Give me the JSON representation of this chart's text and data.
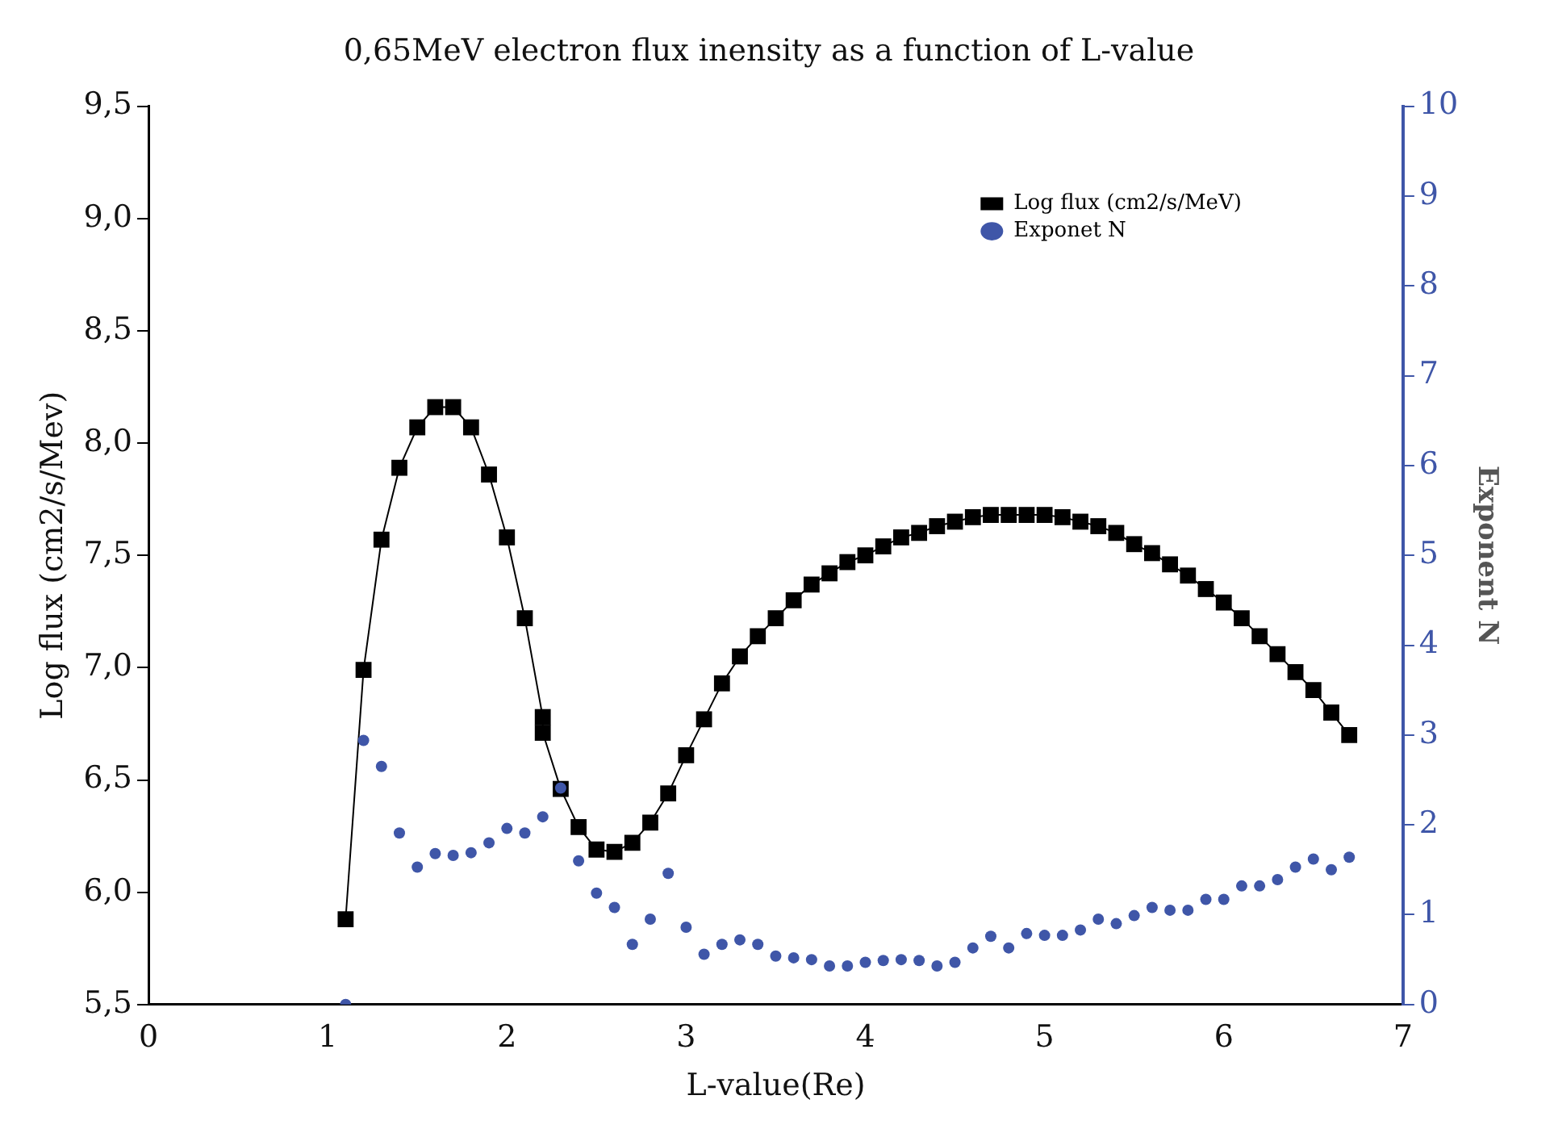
{
  "chart_data": {
    "type": "line",
    "title": "0,65MeV electron flux inensity as a function of L-value",
    "xlabel": "L-value(Re)",
    "ylabel": "Log flux (cm2/s/Mev)",
    "y2label": "Exponent N",
    "xlim": [
      0,
      7
    ],
    "xticks": [
      0,
      1,
      2,
      3,
      4,
      5,
      6,
      7
    ],
    "ylim": [
      5.5,
      9.5
    ],
    "yticks": [
      {
        "value": 5.5,
        "label": "5,5"
      },
      {
        "value": 6,
        "label": "6,0"
      },
      {
        "value": 6.5,
        "label": "6,5"
      },
      {
        "value": 7,
        "label": "7,0"
      },
      {
        "value": 7.5,
        "label": "7,5"
      },
      {
        "value": 8,
        "label": "8,0"
      },
      {
        "value": 8.5,
        "label": "8,5"
      },
      {
        "value": 9,
        "label": "9,0"
      },
      {
        "value": 9.5,
        "label": "9,5"
      }
    ],
    "y2lim": [
      0,
      10
    ],
    "y2ticks": [
      0,
      1,
      2,
      3,
      4,
      5,
      6,
      7,
      8,
      9,
      10
    ],
    "grid": false,
    "legend": "top right",
    "series": [
      {
        "name": "Log flux (cm2/s/MeV)",
        "marker": "square",
        "color": "#000000",
        "x": [
          1.1,
          1.2,
          1.3,
          1.4,
          1.5,
          1.6,
          1.7,
          1.8,
          1.9,
          2.0,
          2.1,
          2.2,
          2.2,
          2.3,
          2.4,
          2.5,
          2.6,
          2.7,
          2.8,
          2.9,
          3.0,
          3.1,
          3.2,
          3.3,
          3.4,
          3.5,
          3.6,
          3.7,
          3.8,
          3.9,
          4.0,
          4.1,
          4.2,
          4.3,
          4.4,
          4.5,
          4.6,
          4.7,
          4.8,
          4.9,
          5.0,
          5.1,
          5.2,
          5.3,
          5.4,
          5.5,
          5.6,
          5.7,
          5.8,
          5.9,
          6.0,
          6.1,
          6.2,
          6.3,
          6.4,
          6.5,
          6.6,
          6.7
        ],
        "values": [
          5.88,
          6.99,
          7.57,
          7.89,
          8.07,
          8.16,
          8.16,
          8.07,
          7.86,
          7.58,
          7.22,
          6.78,
          6.71,
          6.46,
          6.29,
          6.19,
          6.18,
          6.22,
          6.31,
          6.44,
          6.61,
          6.77,
          6.93,
          7.05,
          7.14,
          7.22,
          7.3,
          7.37,
          7.42,
          7.47,
          7.5,
          7.54,
          7.58,
          7.6,
          7.63,
          7.65,
          7.67,
          7.68,
          7.68,
          7.68,
          7.68,
          7.67,
          7.65,
          7.63,
          7.6,
          7.55,
          7.51,
          7.46,
          7.41,
          7.35,
          7.29,
          7.22,
          7.14,
          7.06,
          6.98,
          6.9,
          6.8,
          6.7
        ]
      },
      {
        "name": "Exponet N",
        "type": "scatter",
        "marker": "circle",
        "axis": "y2",
        "color": "#3f56a8",
        "x": [
          1.1,
          1.2,
          1.3,
          1.4,
          1.5,
          1.6,
          1.7,
          1.8,
          1.9,
          2.0,
          2.1,
          2.2,
          2.3,
          2.4,
          2.5,
          2.6,
          2.7,
          2.8,
          2.9,
          3.0,
          3.1,
          3.2,
          3.3,
          3.4,
          3.5,
          3.6,
          3.7,
          3.8,
          3.9,
          4.0,
          4.1,
          4.2,
          4.3,
          4.4,
          4.5,
          4.6,
          4.7,
          4.8,
          4.9,
          5.0,
          5.1,
          5.2,
          5.3,
          5.4,
          5.5,
          5.6,
          5.7,
          5.8,
          5.9,
          6.0,
          6.1,
          6.2,
          6.3,
          6.4,
          6.5,
          6.6,
          6.7
        ],
        "values": [
          0.0,
          2.94,
          2.65,
          1.91,
          1.53,
          1.68,
          1.66,
          1.69,
          1.8,
          1.96,
          1.91,
          2.09,
          2.41,
          1.6,
          1.24,
          1.08,
          0.67,
          0.95,
          1.46,
          0.86,
          0.56,
          0.67,
          0.72,
          0.67,
          0.54,
          0.52,
          0.5,
          0.43,
          0.43,
          0.47,
          0.49,
          0.5,
          0.49,
          0.43,
          0.47,
          0.63,
          0.76,
          0.63,
          0.79,
          0.77,
          0.77,
          0.83,
          0.95,
          0.9,
          0.99,
          1.08,
          1.05,
          1.05,
          1.17,
          1.17,
          1.32,
          1.32,
          1.39,
          1.53,
          1.62,
          1.5,
          1.64
        ]
      }
    ]
  }
}
